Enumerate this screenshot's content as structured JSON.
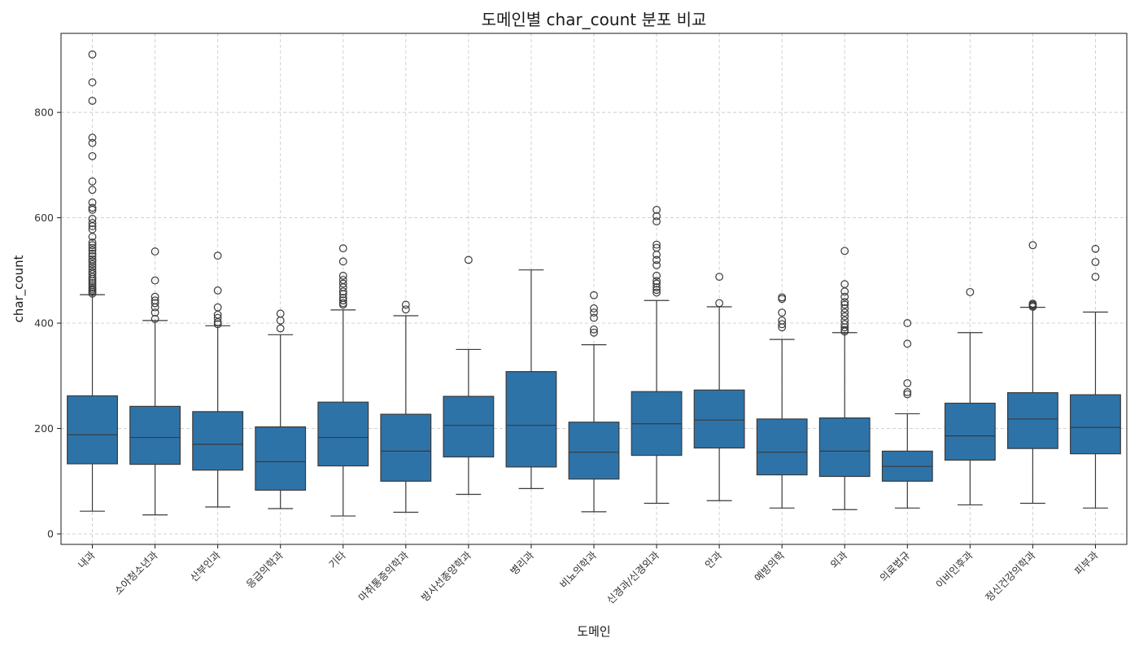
{
  "chart_data": {
    "type": "box",
    "title": "도메인별 char_count 분포 비교",
    "xlabel": "도메인",
    "ylabel": "char_count",
    "ylim": [
      -20,
      950
    ],
    "yticks": [
      0,
      200,
      400,
      600,
      800
    ],
    "grid": true,
    "box_color": "#2e73a8",
    "line_color": "#3a3a3a",
    "categories": [
      "내과",
      "소아청소년과",
      "산부인과",
      "응급의학과",
      "기타",
      "마취통증의학과",
      "방사선종양학과",
      "병리과",
      "비뇨의학과",
      "신경과/신경외과",
      "안과",
      "예방의학",
      "외과",
      "의료법규",
      "이비인후과",
      "정신건강의학과",
      "피부과"
    ],
    "boxes": [
      {
        "category": "내과",
        "whislo": 43,
        "q1": 133,
        "med": 188,
        "q3": 262,
        "whishi": 454,
        "fliers": [
          910,
          857,
          822,
          752,
          742,
          717,
          669,
          653,
          629,
          619,
          615,
          598,
          590,
          584,
          578,
          564,
          553,
          548,
          543,
          538,
          532,
          527,
          521,
          517,
          512,
          507,
          502,
          497,
          493,
          488,
          484,
          480,
          476,
          472,
          468,
          465,
          462,
          459,
          456
        ]
      },
      {
        "category": "소아청소년과",
        "whislo": 36,
        "q1": 132,
        "med": 183,
        "q3": 242,
        "whishi": 405,
        "fliers": [
          536,
          481,
          450,
          443,
          438,
          430,
          420,
          408
        ]
      },
      {
        "category": "산부인과",
        "whislo": 51,
        "q1": 121,
        "med": 170,
        "q3": 232,
        "whishi": 395,
        "fliers": [
          528,
          462,
          430,
          416,
          410,
          402,
          398
        ]
      },
      {
        "category": "응급의학과",
        "whislo": 48,
        "q1": 83,
        "med": 137,
        "q3": 203,
        "whishi": 378,
        "fliers": [
          418,
          405,
          390
        ]
      },
      {
        "category": "기타",
        "whislo": 34,
        "q1": 129,
        "med": 183,
        "q3": 250,
        "whishi": 425,
        "fliers": [
          542,
          517,
          490,
          482,
          475,
          468,
          460,
          455,
          448,
          443,
          438,
          435
        ]
      },
      {
        "category": "마취통증의학과",
        "whislo": 41,
        "q1": 100,
        "med": 157,
        "q3": 227,
        "whishi": 414,
        "fliers": [
          435,
          426
        ]
      },
      {
        "category": "방사선종양학과",
        "whislo": 75,
        "q1": 146,
        "med": 206,
        "q3": 261,
        "whishi": 350,
        "fliers": [
          520
        ]
      },
      {
        "category": "병리과",
        "whislo": 86,
        "q1": 127,
        "med": 206,
        "q3": 308,
        "whishi": 501,
        "fliers": []
      },
      {
        "category": "비뇨의학과",
        "whislo": 42,
        "q1": 104,
        "med": 155,
        "q3": 212,
        "whishi": 359,
        "fliers": [
          453,
          428,
          420,
          410,
          388,
          382
        ]
      },
      {
        "category": "신경과/신경외과",
        "whislo": 58,
        "q1": 149,
        "med": 209,
        "q3": 270,
        "whishi": 443,
        "fliers": [
          615,
          603,
          593,
          549,
          543,
          530,
          520,
          510,
          490,
          480,
          475,
          468,
          463,
          458
        ]
      },
      {
        "category": "안과",
        "whislo": 63,
        "q1": 163,
        "med": 216,
        "q3": 273,
        "whishi": 431,
        "fliers": [
          488,
          438
        ]
      },
      {
        "category": "예방의학",
        "whislo": 49,
        "q1": 112,
        "med": 155,
        "q3": 218,
        "whishi": 369,
        "fliers": [
          449,
          446,
          420,
          405,
          398,
          392
        ]
      },
      {
        "category": "외과",
        "whislo": 46,
        "q1": 109,
        "med": 157,
        "q3": 220,
        "whishi": 382,
        "fliers": [
          537,
          474,
          460,
          450,
          440,
          435,
          428,
          420,
          413,
          405,
          398,
          392,
          387,
          384
        ]
      },
      {
        "category": "의료법규",
        "whislo": 49,
        "q1": 100,
        "med": 128,
        "q3": 157,
        "whishi": 228,
        "fliers": [
          400,
          361,
          286,
          269,
          265
        ]
      },
      {
        "category": "이비인후과",
        "whislo": 55,
        "q1": 140,
        "med": 186,
        "q3": 248,
        "whishi": 382,
        "fliers": [
          459
        ]
      },
      {
        "category": "정신건강의학과",
        "whislo": 58,
        "q1": 162,
        "med": 218,
        "q3": 268,
        "whishi": 430,
        "fliers": [
          548,
          437,
          435,
          433,
          431
        ]
      },
      {
        "category": "피부과",
        "whislo": 49,
        "q1": 152,
        "med": 202,
        "q3": 264,
        "whishi": 421,
        "fliers": [
          541,
          516,
          488
        ]
      }
    ]
  }
}
